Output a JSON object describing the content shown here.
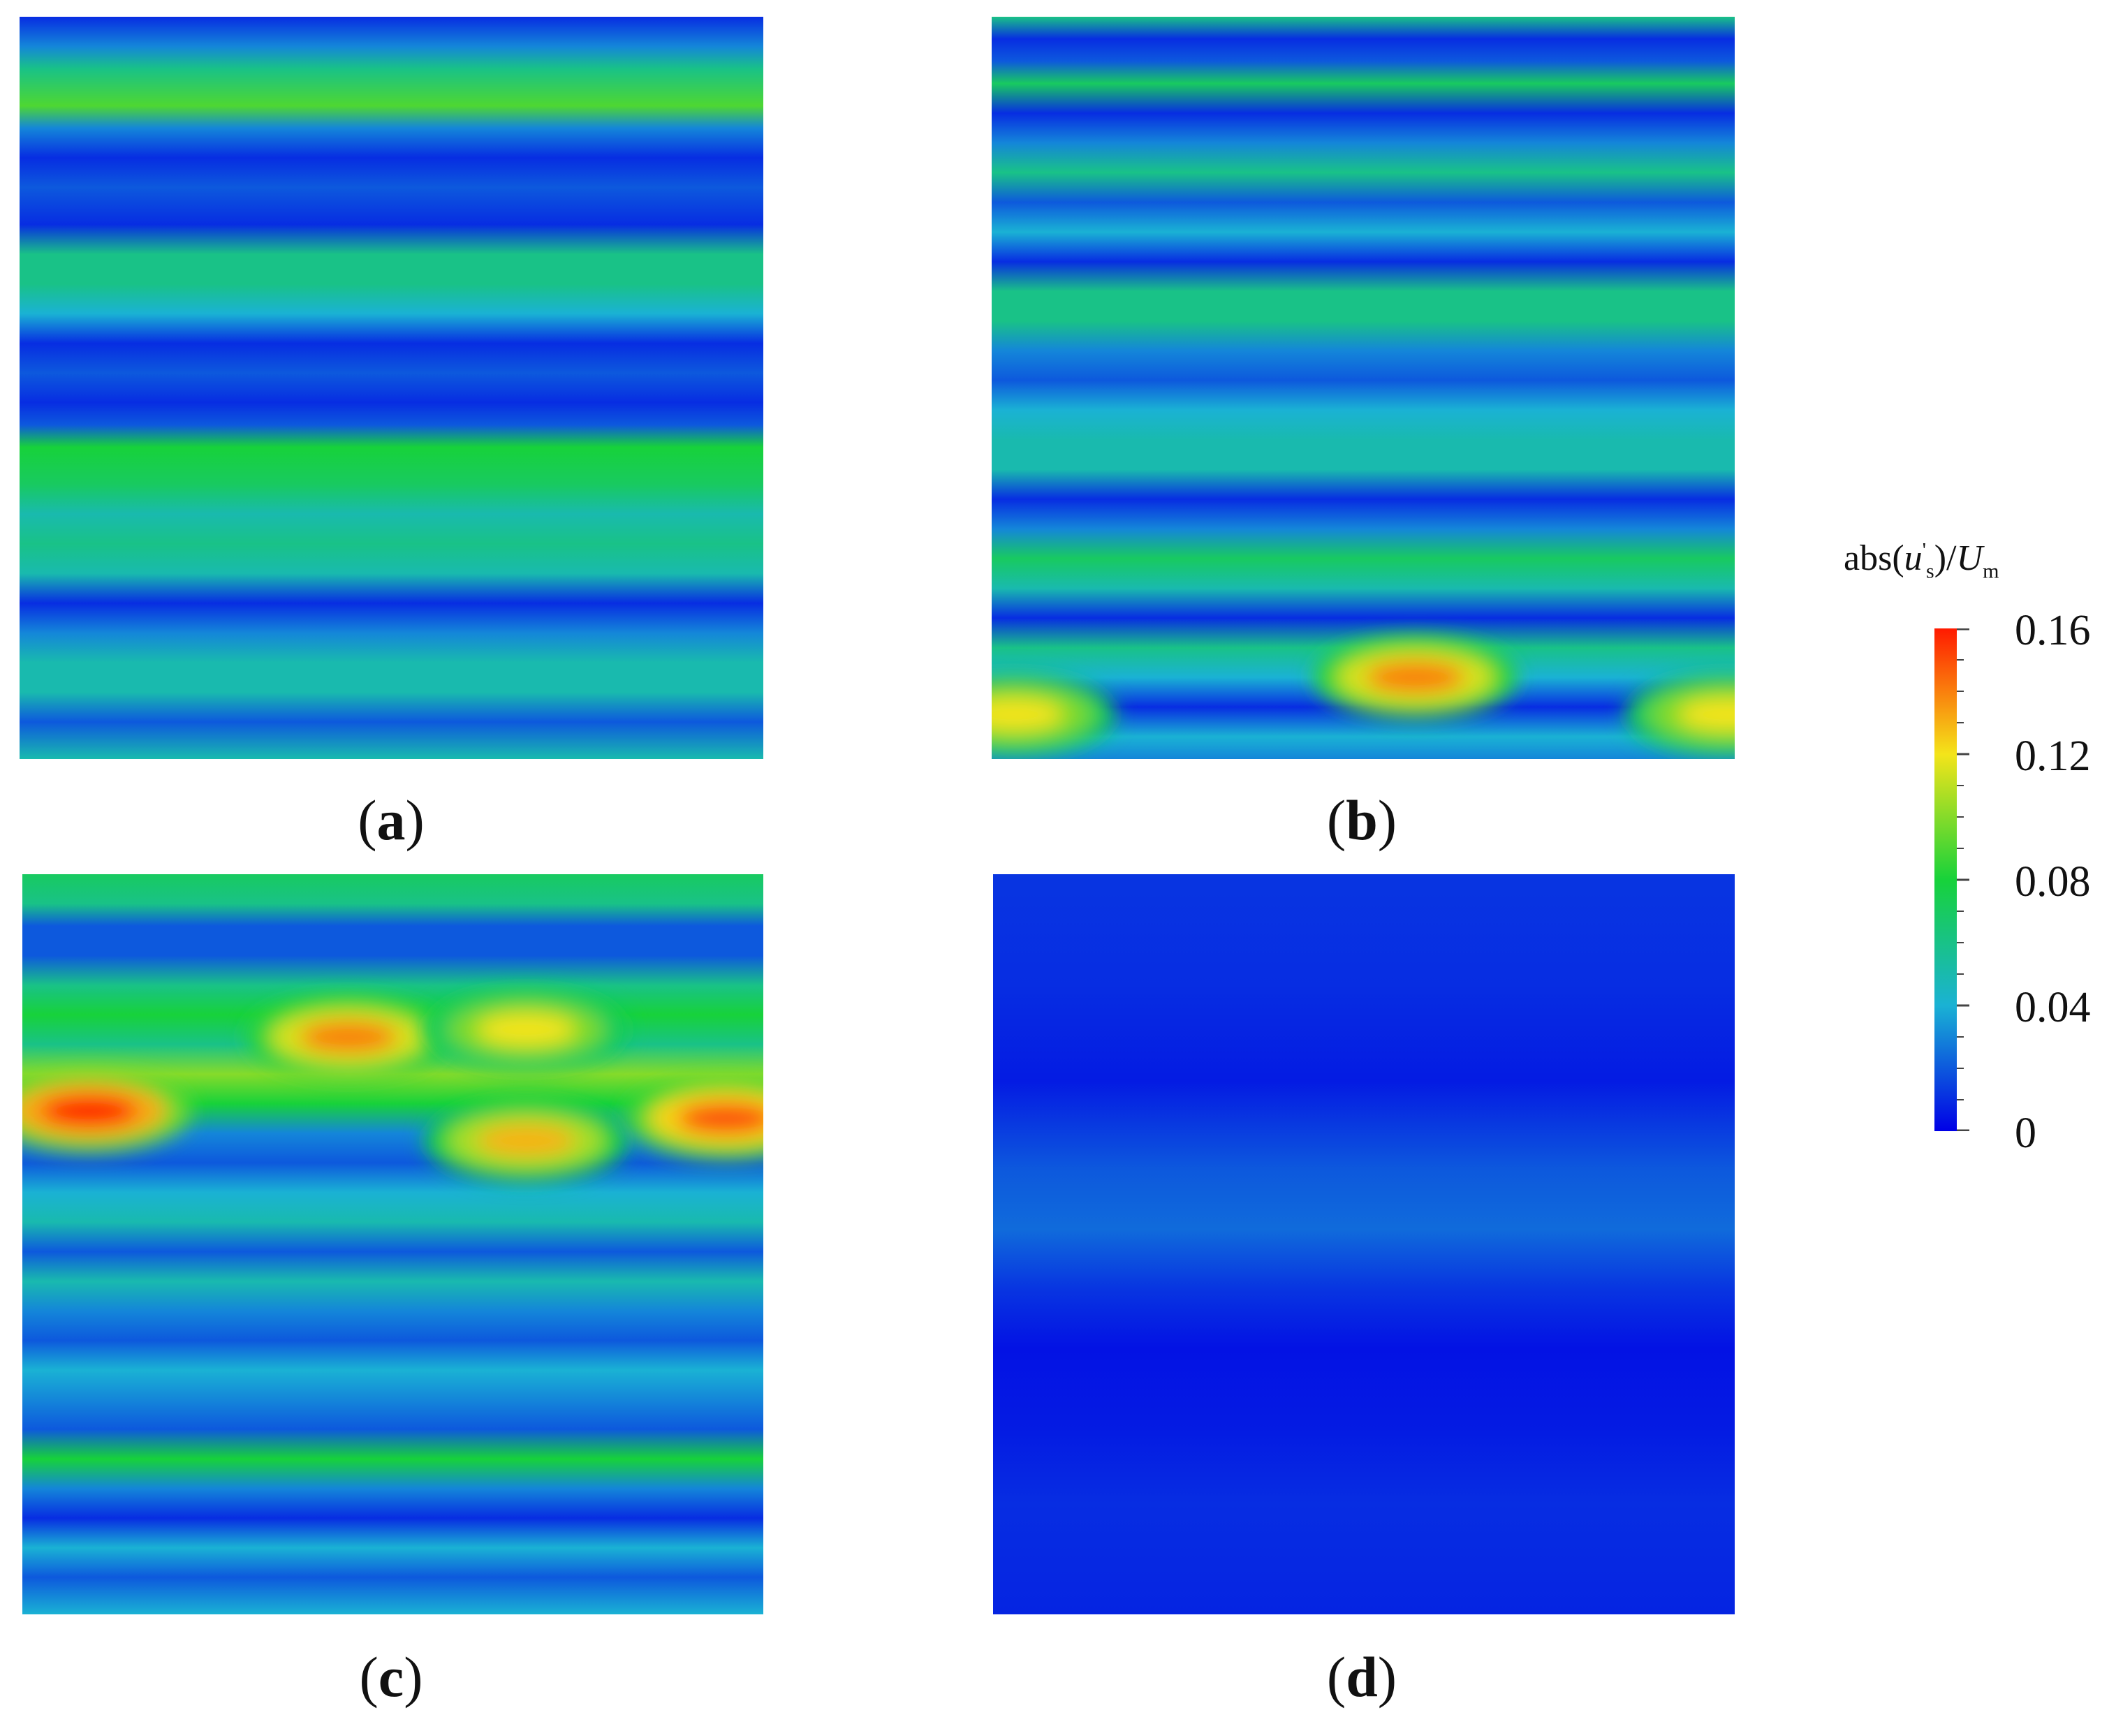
{
  "chart_data": {
    "type": "heatmap",
    "panels": [
      {
        "id": "a",
        "label": "a",
        "fill_bands": [
          [
            0.0,
            0.01
          ],
          [
            0.04,
            0.03
          ],
          [
            0.07,
            0.06
          ],
          [
            0.12,
            0.09
          ],
          [
            0.15,
            0.03
          ],
          [
            0.19,
            0.01
          ],
          [
            0.23,
            0.02
          ],
          [
            0.28,
            0.01
          ],
          [
            0.32,
            0.06
          ],
          [
            0.36,
            0.06
          ],
          [
            0.4,
            0.04
          ],
          [
            0.44,
            0.01
          ],
          [
            0.48,
            0.02
          ],
          [
            0.52,
            0.01
          ],
          [
            0.55,
            0.02
          ],
          [
            0.58,
            0.08
          ],
          [
            0.63,
            0.07
          ],
          [
            0.67,
            0.05
          ],
          [
            0.71,
            0.06
          ],
          [
            0.75,
            0.05
          ],
          [
            0.79,
            0.01
          ],
          [
            0.83,
            0.03
          ],
          [
            0.87,
            0.05
          ],
          [
            0.91,
            0.05
          ],
          [
            0.95,
            0.02
          ],
          [
            1.0,
            0.05
          ]
        ]
      },
      {
        "id": "b",
        "label": "b",
        "fill_bands": [
          [
            0.0,
            0.06
          ],
          [
            0.03,
            0.01
          ],
          [
            0.06,
            0.02
          ],
          [
            0.09,
            0.07
          ],
          [
            0.13,
            0.01
          ],
          [
            0.17,
            0.03
          ],
          [
            0.21,
            0.06
          ],
          [
            0.25,
            0.02
          ],
          [
            0.29,
            0.04
          ],
          [
            0.33,
            0.01
          ],
          [
            0.37,
            0.06
          ],
          [
            0.41,
            0.06
          ],
          [
            0.45,
            0.03
          ],
          [
            0.49,
            0.02
          ],
          [
            0.53,
            0.04
          ],
          [
            0.57,
            0.05
          ],
          [
            0.61,
            0.05
          ],
          [
            0.65,
            0.01
          ],
          [
            0.69,
            0.03
          ],
          [
            0.73,
            0.07
          ],
          [
            0.77,
            0.05
          ],
          [
            0.81,
            0.01
          ],
          [
            0.85,
            0.06
          ],
          [
            0.89,
            0.04
          ],
          [
            0.93,
            0.01
          ],
          [
            0.97,
            0.04
          ],
          [
            1.0,
            0.03
          ]
        ]
      },
      {
        "id": "c",
        "label": "c",
        "fill_bands": [
          [
            0.0,
            0.07
          ],
          [
            0.04,
            0.06
          ],
          [
            0.07,
            0.02
          ],
          [
            0.11,
            0.02
          ],
          [
            0.15,
            0.06
          ],
          [
            0.19,
            0.08
          ],
          [
            0.23,
            0.06
          ],
          [
            0.27,
            0.1
          ],
          [
            0.31,
            0.08
          ],
          [
            0.35,
            0.03
          ],
          [
            0.39,
            0.02
          ],
          [
            0.43,
            0.04
          ],
          [
            0.47,
            0.05
          ],
          [
            0.51,
            0.02
          ],
          [
            0.55,
            0.05
          ],
          [
            0.59,
            0.03
          ],
          [
            0.63,
            0.02
          ],
          [
            0.67,
            0.04
          ],
          [
            0.71,
            0.03
          ],
          [
            0.75,
            0.02
          ],
          [
            0.79,
            0.08
          ],
          [
            0.83,
            0.03
          ],
          [
            0.87,
            0.01
          ],
          [
            0.91,
            0.04
          ],
          [
            0.95,
            0.02
          ],
          [
            1.0,
            0.04
          ]
        ]
      },
      {
        "id": "d",
        "label": "d",
        "fill_bands": [
          [
            0.0,
            0.012
          ],
          [
            0.15,
            0.01
          ],
          [
            0.28,
            0.006
          ],
          [
            0.4,
            0.02
          ],
          [
            0.48,
            0.024
          ],
          [
            0.56,
            0.012
          ],
          [
            0.64,
            0.004
          ],
          [
            0.75,
            0.006
          ],
          [
            0.85,
            0.01
          ],
          [
            1.0,
            0.008
          ]
        ]
      }
    ],
    "hotspots": {
      "b": [
        {
          "x": 0.57,
          "y": 0.89,
          "value": 0.14
        },
        {
          "x": 0.03,
          "y": 0.94,
          "value": 0.12
        },
        {
          "x": 0.99,
          "y": 0.94,
          "value": 0.12
        }
      ],
      "c": [
        {
          "x": 0.09,
          "y": 0.32,
          "value": 0.16
        },
        {
          "x": 0.44,
          "y": 0.22,
          "value": 0.14
        },
        {
          "x": 0.68,
          "y": 0.36,
          "value": 0.13
        },
        {
          "x": 0.95,
          "y": 0.33,
          "value": 0.15
        },
        {
          "x": 0.68,
          "y": 0.21,
          "value": 0.12
        }
      ]
    },
    "colorbar": {
      "title_prefix": "abs(",
      "title_var": "u",
      "title_sup": "'",
      "title_sub": "s",
      "title_mid": ")/",
      "title_den": "U",
      "title_den_sub": "m",
      "ticks": [
        "0",
        "0.04",
        "0.08",
        "0.12",
        "0.16"
      ],
      "range": [
        0,
        0.16
      ]
    }
  },
  "captions": {
    "a": "a",
    "b": "b",
    "c": "c",
    "d": "d"
  },
  "colors": {
    "low": "#0000e6",
    "cyan": "#1ab2d4",
    "green": "#17d23a",
    "yellow": "#f4e41a",
    "red": "#ff1a00"
  }
}
